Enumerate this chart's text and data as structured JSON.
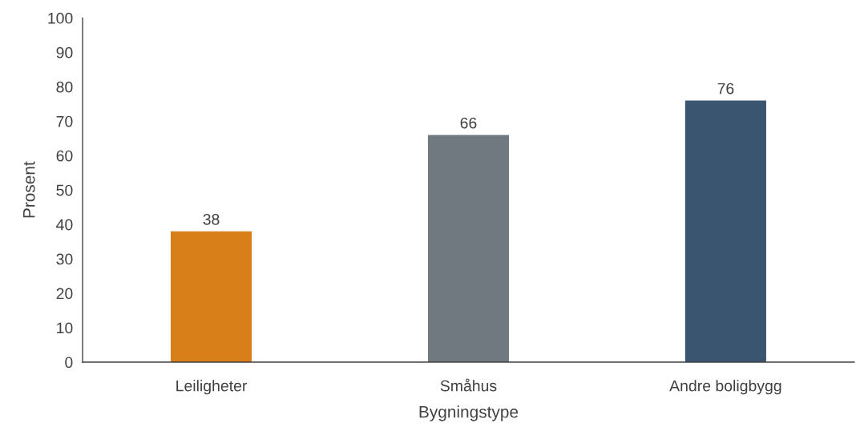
{
  "chart_data": {
    "type": "bar",
    "xlabel": "Bygningstype",
    "ylabel": "Prosent",
    "categories": [
      "Leiligheter",
      "Småhus",
      "Andre boligbygg"
    ],
    "values": [
      38,
      66,
      76
    ],
    "colors": [
      "#d97f1a",
      "#707880",
      "#3a5570"
    ],
    "ylim": [
      0,
      100
    ],
    "yticks": [
      0,
      10,
      20,
      30,
      40,
      50,
      60,
      70,
      80,
      90,
      100
    ],
    "data_labels": true,
    "grid": false,
    "legend": false
  }
}
